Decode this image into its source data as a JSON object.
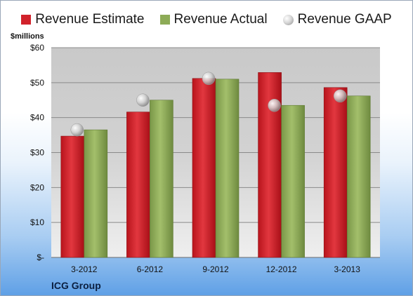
{
  "legend": {
    "estimate": "Revenue Estimate",
    "actual": "Revenue Actual",
    "gaap": "Revenue GAAP"
  },
  "units": "$millions",
  "company": "ICG Group",
  "colors": {
    "estimate": "#d1222b",
    "actual": "#8dab57",
    "gaap": "#c8c8c8"
  },
  "chart_data": {
    "type": "bar",
    "title": "",
    "xlabel": "",
    "ylabel": "$millions",
    "ylim": [
      0,
      60
    ],
    "y_ticks": [
      0,
      10,
      20,
      30,
      40,
      50,
      60
    ],
    "y_tick_labels": [
      "$-",
      "$10",
      "$20",
      "$30",
      "$40",
      "$50",
      "$60"
    ],
    "grid": true,
    "legend_position": "top",
    "categories": [
      "3-2012",
      "6-2012",
      "9-2012",
      "12-2012",
      "3-2013"
    ],
    "series": [
      {
        "name": "Revenue Estimate",
        "type": "bar",
        "values": [
          34.7,
          41.6,
          51.2,
          52.9,
          48.6
        ]
      },
      {
        "name": "Revenue Actual",
        "type": "bar",
        "values": [
          36.5,
          45.0,
          51.0,
          43.5,
          46.2
        ]
      },
      {
        "name": "Revenue GAAP",
        "type": "marker",
        "values": [
          36.5,
          45.0,
          51.2,
          43.5,
          46.2
        ]
      }
    ]
  }
}
